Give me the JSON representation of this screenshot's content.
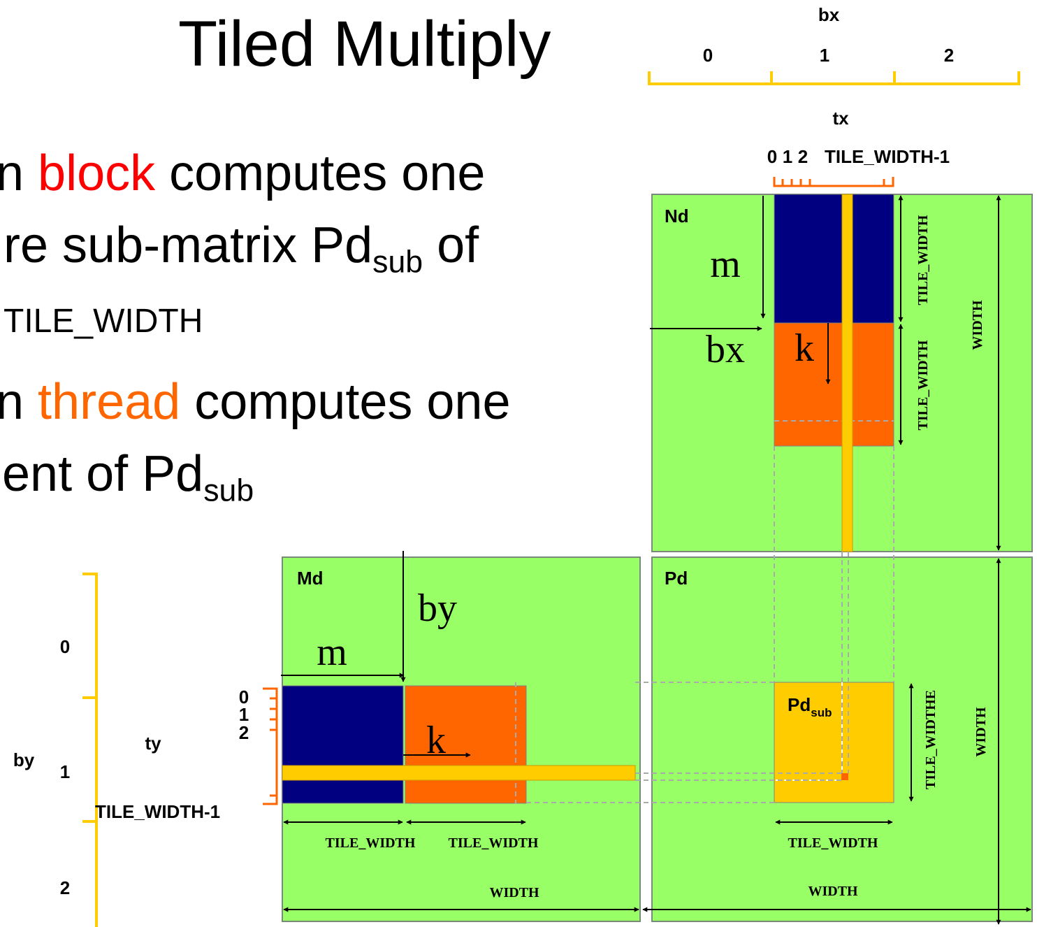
{
  "title": "Tiled Multiply",
  "bullets": {
    "b1_line1_pre": "n ",
    "b1_line1_highlight": "block",
    "b1_line1_post": " computes one",
    "b1_line2_text": "re sub-matrix Pd",
    "b1_line2_sub": "sub",
    "b1_line2_end": " of",
    "b1_line3": "TILE_WIDTH",
    "b2_line1_pre": "n ",
    "b2_line1_highlight": "thread",
    "b2_line1_post": " computes one",
    "b2_line2_text": "ent of Pd",
    "b2_line2_sub": "sub"
  },
  "colors": {
    "matrix_green": "#99ff66",
    "block_navy": "#000080",
    "block_orange": "#ff6600",
    "bar_yellow": "#ffcc00",
    "brace_gold": "#ffcc00",
    "brace_orange": "#ff6600"
  },
  "diagram": {
    "bx_axis": {
      "label": "bx",
      "ticks": [
        "0",
        "1",
        "2"
      ]
    },
    "tx_axis": {
      "label": "tx",
      "ticks": [
        "0",
        "1",
        "2"
      ],
      "last_tick": "TILE_WIDTH-1"
    },
    "by_axis": {
      "label": "by",
      "ticks": [
        "0",
        "1",
        "2"
      ]
    },
    "ty_axis": {
      "label": "ty",
      "ticks": [
        "0",
        "1",
        "2"
      ],
      "last_tick": "TILE_WIDTH-1"
    },
    "nd": {
      "name": "Nd",
      "m": "m",
      "bx": "bx",
      "k": "k",
      "tile_width_upper": "TILE_WIDTH",
      "tile_width_lower": "TILE_WIDTH",
      "width": "WIDTH"
    },
    "md": {
      "name": "Md",
      "by": "by",
      "m": "m",
      "k": "k",
      "tile_width_left": "TILE_WIDTH",
      "tile_width_right": "TILE_WIDTH",
      "width": "WIDTH"
    },
    "pd": {
      "name": "Pd",
      "sub_name": "Pd",
      "sub_script": "sub",
      "tile_width_vertical": "TILE_WIDTHE",
      "tile_width_horizontal": "TILE_WIDTH",
      "width_vertical": "WIDTH",
      "width_horizontal": "WIDTH"
    }
  }
}
